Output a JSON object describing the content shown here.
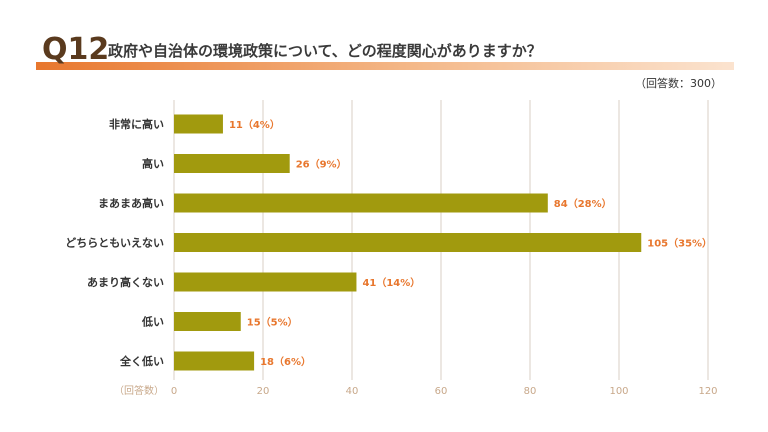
{
  "header": {
    "question_number": "Q12",
    "question_text": "政府や自治体の環境政策について、どの程度関心がありますか？",
    "respondents": "（回答数：300）"
  },
  "colors": {
    "bar": "#a19a0e",
    "value_label": "#e8772e",
    "grid": "#d9cfc4",
    "accent": "#e8772e"
  },
  "chart_data": {
    "type": "bar",
    "orientation": "horizontal",
    "title": "政府や自治体の環境政策について、どの程度関心がありますか？",
    "xlabel": "（回答数）",
    "xlim": [
      0,
      120
    ],
    "xticks": [
      0,
      20,
      40,
      60,
      80,
      100,
      120
    ],
    "categories": [
      "非常に高い",
      "高い",
      "まあまあ高い",
      "どちらともいえない",
      "あまり高くない",
      "低い",
      "全く低い"
    ],
    "values": [
      11,
      26,
      84,
      105,
      41,
      15,
      18
    ],
    "value_labels": [
      "11（4%）",
      "26（9%）",
      "84（28%）",
      "105（35%）",
      "41（14%）",
      "15（5%）",
      "18（6%）"
    ]
  }
}
